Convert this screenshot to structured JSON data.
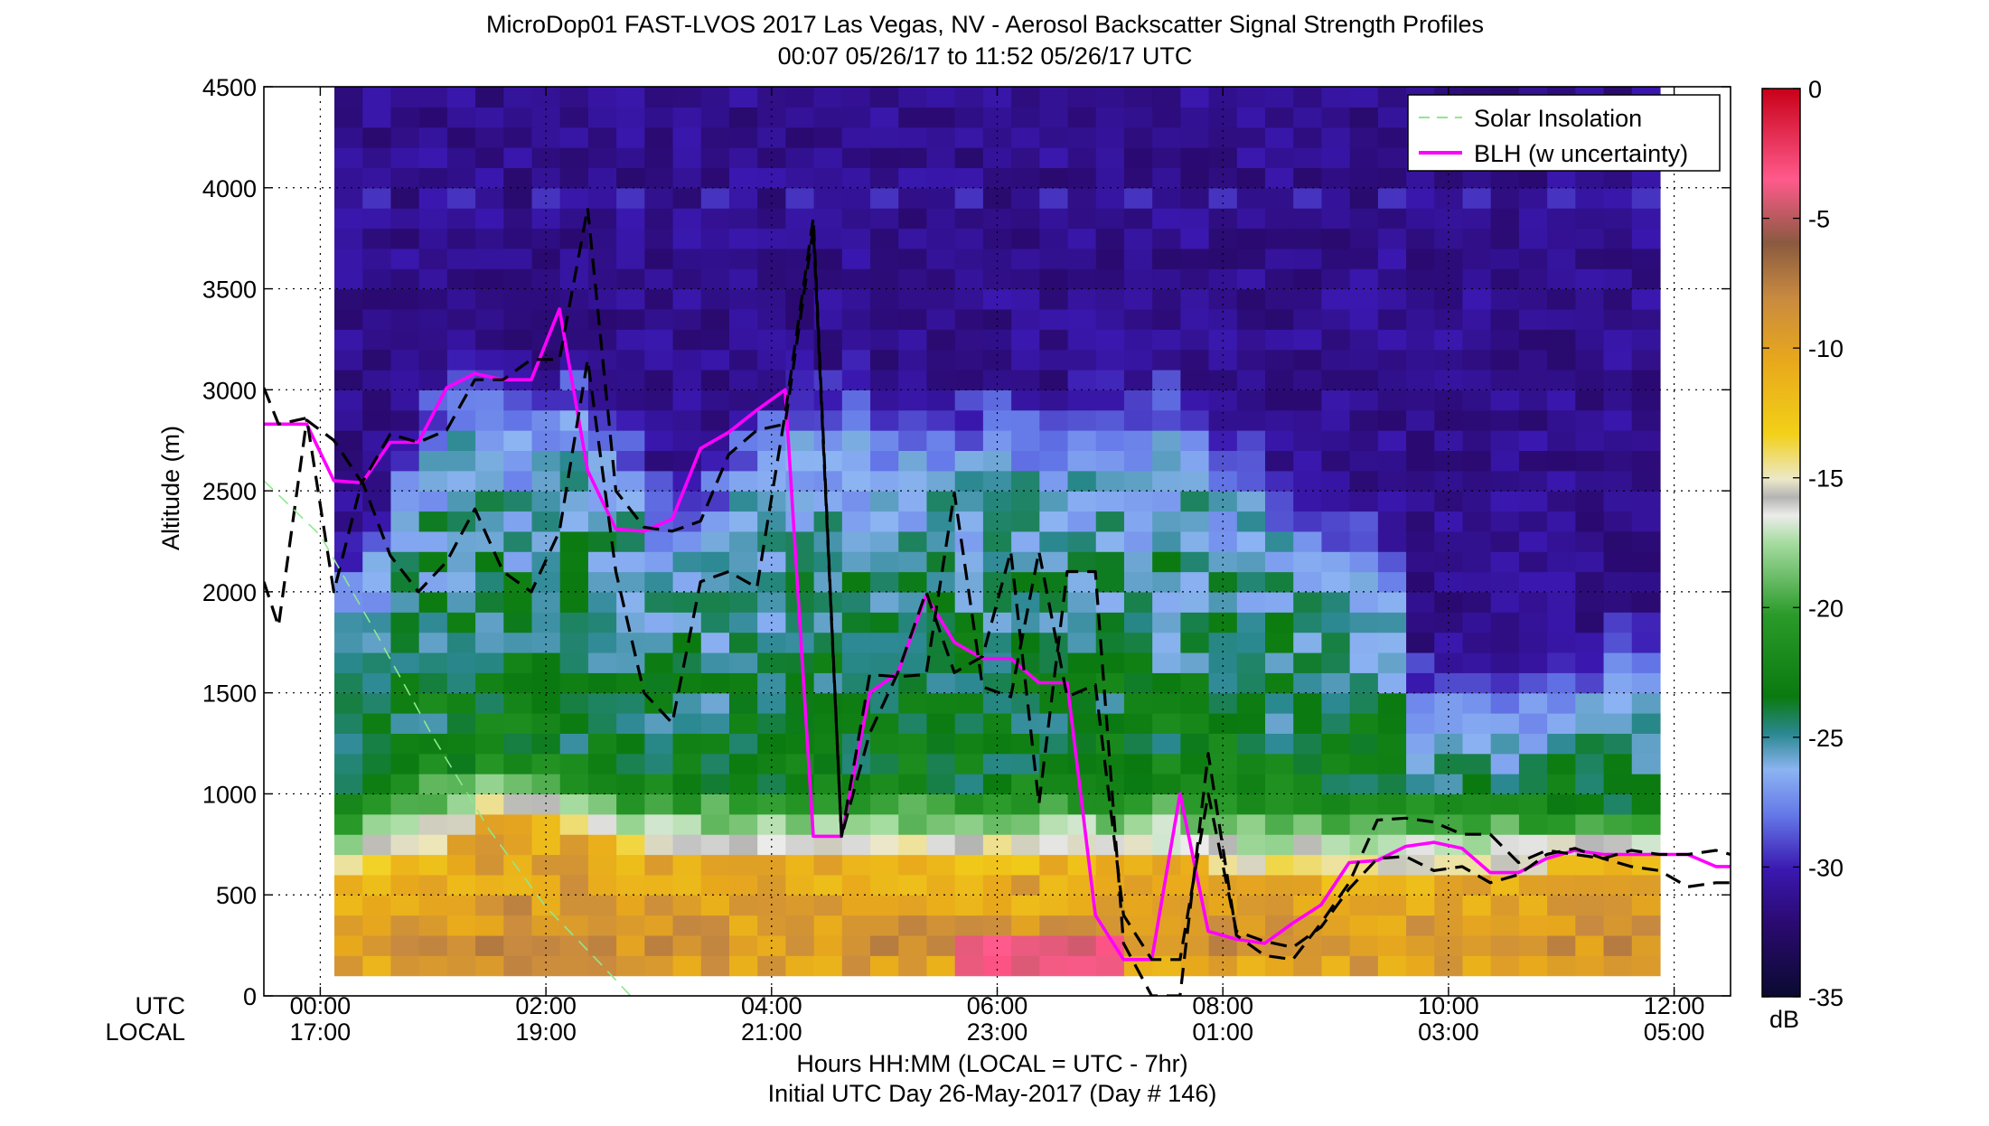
{
  "chart_data": {
    "type": "heatmap",
    "title": "MicroDop01 FAST-LVOS 2017 Las Vegas, NV - Aerosol Backscatter Signal Strength Profiles",
    "subtitle": "00:07 05/26/17 to 11:52 05/26/17  UTC",
    "ylabel": "Altitude (m)",
    "xlabel": "Hours HH:MM  (LOCAL = UTC - 7hr)",
    "xlabel2": "Initial UTC Day 26-May-2017 (Day # 146)",
    "row_labels": {
      "utc": "UTC",
      "local": "LOCAL"
    },
    "xlim": [
      -0.5,
      12.5
    ],
    "ylim": [
      0,
      4500
    ],
    "grid": true,
    "y_ticks": [
      "0",
      "500",
      "1000",
      "1500",
      "2000",
      "2500",
      "3000",
      "3500",
      "4000",
      "4500"
    ],
    "x_ticks": [
      {
        "x": 0,
        "utc": "00:00",
        "local": "17:00"
      },
      {
        "x": 2,
        "utc": "02:00",
        "local": "19:00"
      },
      {
        "x": 4,
        "utc": "04:00",
        "local": "21:00"
      },
      {
        "x": 6,
        "utc": "06:00",
        "local": "23:00"
      },
      {
        "x": 8,
        "utc": "08:00",
        "local": "01:00"
      },
      {
        "x": 10,
        "utc": "10:00",
        "local": "03:00"
      },
      {
        "x": 12,
        "utc": "12:00",
        "local": "05:00"
      }
    ],
    "colorbar": {
      "range": [
        -35,
        0
      ],
      "unit": "dB",
      "tick_labels": [
        "0",
        "-5",
        "-10",
        "-15",
        "-20",
        "-25",
        "-30",
        "-35"
      ]
    },
    "legend": {
      "position": "top-right",
      "entries": [
        {
          "label": "Solar Insolation",
          "color": "#8fe88f",
          "style": "dashed"
        },
        {
          "label": "BLH (w uncertainty)",
          "color": "#ff00ff",
          "style": "solid"
        }
      ]
    },
    "data_extent": {
      "t_start": 0.13,
      "t_end": 11.88,
      "z_start": 100
    },
    "backscatter_columns": [
      {
        "t": 0.25,
        "top": 2100,
        "hi": 600,
        "mid": 1000,
        "spike": -27,
        "rough": 1
      },
      {
        "t": 0.5,
        "top": 2300,
        "hi": 650,
        "mid": 1050,
        "spike": -27,
        "rough": 1.2
      },
      {
        "t": 0.75,
        "top": 2600,
        "hi": 700,
        "mid": 1100,
        "spike": -27,
        "rough": 1
      },
      {
        "t": 1.0,
        "top": 2850,
        "hi": 750,
        "mid": 1150,
        "spike": -27,
        "rough": 1.3
      },
      {
        "t": 1.25,
        "top": 3000,
        "hi": 800,
        "mid": 1150,
        "spike": -27,
        "rough": 1
      },
      {
        "t": 1.5,
        "top": 2950,
        "hi": 950,
        "mid": 1200,
        "spike": -27,
        "rough": 1.1
      },
      {
        "t": 1.75,
        "top": 2900,
        "hi": 950,
        "mid": 1200,
        "spike": -29,
        "rough": 1.2
      },
      {
        "t": 2.0,
        "top": 2900,
        "hi": 900,
        "mid": 1200,
        "spike": -29,
        "rough": 1
      },
      {
        "t": 2.25,
        "top": 2950,
        "hi": 850,
        "mid": 1150,
        "spike": -28,
        "rough": 1.3
      },
      {
        "t": 2.5,
        "top": 2800,
        "hi": 800,
        "mid": 1100,
        "spike": -28,
        "rough": 1.1
      },
      {
        "t": 2.75,
        "top": 2650,
        "hi": 750,
        "mid": 1050,
        "spike": -28,
        "rough": 1
      },
      {
        "t": 3.0,
        "top": 2450,
        "hi": 750,
        "mid": 1050,
        "spike": -29,
        "rough": 1.1
      },
      {
        "t": 3.25,
        "top": 2400,
        "hi": 700,
        "mid": 1050,
        "spike": -29,
        "rough": 1
      },
      {
        "t": 3.5,
        "top": 2500,
        "hi": 700,
        "mid": 1050,
        "spike": -29,
        "rough": 1.2
      },
      {
        "t": 3.75,
        "top": 2700,
        "hi": 700,
        "mid": 1050,
        "spike": -29,
        "rough": 1
      },
      {
        "t": 4.0,
        "top": 2800,
        "hi": 700,
        "mid": 1050,
        "spike": -28,
        "rough": 1.2
      },
      {
        "t": 4.25,
        "top": 2900,
        "hi": 700,
        "mid": 1050,
        "spike": -26,
        "rough": 1
      },
      {
        "t": 4.5,
        "top": 2900,
        "hi": 700,
        "mid": 1050,
        "spike": -29,
        "rough": 1
      },
      {
        "t": 4.75,
        "top": 2950,
        "hi": 700,
        "mid": 1050,
        "spike": -27,
        "rough": 1.1
      },
      {
        "t": 5.0,
        "top": 2800,
        "hi": 700,
        "mid": 1050,
        "spike": -29,
        "rough": 1
      },
      {
        "t": 5.25,
        "top": 2850,
        "hi": 700,
        "mid": 1050,
        "spike": -28,
        "rough": 1.2
      },
      {
        "t": 5.5,
        "top": 2800,
        "hi": 700,
        "mid": 1050,
        "spike": -28,
        "rough": 1
      },
      {
        "t": 5.75,
        "top": 2800,
        "hi": 700,
        "mid": 1050,
        "spike": -29,
        "rough": 1.1
      },
      {
        "t": 6.0,
        "top": 2850,
        "hi": 700,
        "mid": 1050,
        "spike": -28,
        "rough": 1
      },
      {
        "t": 6.25,
        "top": 2800,
        "hi": 700,
        "mid": 1050,
        "spike": -26,
        "rough": 1.2
      },
      {
        "t": 6.5,
        "top": 2750,
        "hi": 700,
        "mid": 1050,
        "spike": -29,
        "rough": 1
      },
      {
        "t": 6.75,
        "top": 2850,
        "hi": 700,
        "mid": 1050,
        "spike": -28,
        "rough": 1
      },
      {
        "t": 7.0,
        "top": 2900,
        "hi": 700,
        "mid": 1050,
        "spike": -29,
        "rough": 1.1
      },
      {
        "t": 7.25,
        "top": 2750,
        "hi": 700,
        "mid": 1050,
        "spike": -29,
        "rough": 1
      },
      {
        "t": 7.5,
        "top": 2900,
        "hi": 700,
        "mid": 1050,
        "spike": -29,
        "rough": 1.2
      },
      {
        "t": 7.75,
        "top": 2800,
        "hi": 700,
        "mid": 1050,
        "spike": -29,
        "rough": 1
      },
      {
        "t": 8.0,
        "top": 2650,
        "hi": 650,
        "mid": 1050,
        "spike": -29,
        "rough": 1.1
      },
      {
        "t": 8.25,
        "top": 2600,
        "hi": 650,
        "mid": 1000,
        "spike": -29,
        "rough": 1
      },
      {
        "t": 8.5,
        "top": 2450,
        "hi": 650,
        "mid": 1000,
        "spike": -28,
        "rough": 1.2
      },
      {
        "t": 8.75,
        "top": 2350,
        "hi": 650,
        "mid": 1000,
        "spike": -29,
        "rough": 1
      },
      {
        "t": 9.0,
        "top": 2300,
        "hi": 650,
        "mid": 1000,
        "spike": -29,
        "rough": 1
      },
      {
        "t": 9.25,
        "top": 2250,
        "hi": 650,
        "mid": 1000,
        "spike": -29,
        "rough": 1.1
      },
      {
        "t": 9.5,
        "top": 2100,
        "hi": 650,
        "mid": 1000,
        "spike": -29,
        "rough": 1
      },
      {
        "t": 9.75,
        "top": 1500,
        "hi": 650,
        "mid": 1000,
        "spike": -29,
        "rough": 1
      },
      {
        "t": 10.0,
        "top": 1500,
        "hi": 650,
        "mid": 950,
        "spike": -29,
        "rough": 1
      },
      {
        "t": 10.25,
        "top": 1500,
        "hi": 650,
        "mid": 950,
        "spike": -29,
        "rough": 1
      },
      {
        "t": 10.5,
        "top": 1450,
        "hi": 650,
        "mid": 950,
        "spike": -29,
        "rough": 1
      },
      {
        "t": 10.75,
        "top": 1500,
        "hi": 650,
        "mid": 950,
        "spike": -29,
        "rough": 1
      },
      {
        "t": 11.0,
        "top": 1550,
        "hi": 700,
        "mid": 950,
        "spike": -29,
        "rough": 1
      },
      {
        "t": 11.25,
        "top": 1600,
        "hi": 700,
        "mid": 950,
        "spike": -28,
        "rough": 1
      },
      {
        "t": 11.5,
        "top": 1650,
        "hi": 700,
        "mid": 950,
        "spike": -29,
        "rough": 1
      },
      {
        "t": 11.75,
        "top": 1650,
        "hi": 700,
        "mid": 950,
        "spike": -29,
        "rough": 1
      }
    ],
    "series": [
      {
        "name": "BLH (w uncertainty)",
        "kind": "blh",
        "color": "#ff00ff",
        "x": [
          -0.5,
          -0.12,
          0.12,
          0.37,
          0.62,
          0.87,
          1.12,
          1.37,
          1.62,
          1.87,
          2.12,
          2.37,
          2.62,
          2.87,
          3.12,
          3.37,
          3.62,
          3.87,
          4.12,
          4.37,
          4.62,
          4.87,
          5.12,
          5.37,
          5.62,
          5.87,
          6.12,
          6.37,
          6.62,
          6.87,
          7.12,
          7.37,
          7.62,
          7.87,
          8.12,
          8.37,
          8.62,
          8.87,
          9.12,
          9.37,
          9.62,
          9.87,
          10.12,
          10.37,
          10.62,
          10.87,
          11.12,
          11.37,
          11.62,
          11.87,
          12.12,
          12.37,
          12.5
        ],
        "y": [
          2830,
          2830,
          2550,
          2540,
          2740,
          2740,
          3010,
          3080,
          3050,
          3050,
          3400,
          2600,
          2310,
          2300,
          2360,
          2710,
          2790,
          2900,
          3000,
          790,
          790,
          1500,
          1600,
          1980,
          1750,
          1670,
          1670,
          1550,
          1550,
          400,
          180,
          180,
          1000,
          320,
          280,
          260,
          360,
          450,
          660,
          670,
          740,
          760,
          730,
          610,
          610,
          680,
          720,
          700,
          700,
          700,
          700,
          640,
          640
        ]
      },
      {
        "name": "",
        "kind": "uncertainty",
        "color": "#000000",
        "x": [
          -0.5,
          -0.37,
          -0.12,
          0.12,
          0.37,
          0.62,
          0.87,
          1.12,
          1.37,
          1.62,
          1.87,
          2.12,
          2.37,
          2.62,
          2.87,
          3.12,
          3.37,
          3.62,
          3.87,
          4.12,
          4.37,
          4.62,
          4.87,
          5.12,
          5.37,
          5.62,
          5.87,
          6.12,
          6.37,
          6.62,
          6.87,
          7.12,
          7.37,
          7.62,
          7.87,
          8.12,
          8.37,
          8.62,
          8.87,
          9.12,
          9.37,
          9.62,
          9.87,
          10.12,
          10.37,
          10.62,
          10.87,
          11.12,
          11.37,
          11.62,
          11.87,
          12.12,
          12.37,
          12.5
        ],
        "y": [
          3010,
          2830,
          2860,
          2000,
          2550,
          2180,
          2000,
          2150,
          2410,
          2100,
          2000,
          2300,
          3150,
          2100,
          1500,
          1350,
          2050,
          2100,
          2020,
          2880,
          3850,
          790,
          1590,
          1580,
          1590,
          2490,
          1530,
          1480,
          2200,
          1480,
          1540,
          400,
          180,
          180,
          1000,
          320,
          270,
          240,
          340,
          530,
          680,
          690,
          620,
          640,
          560,
          600,
          700,
          730,
          680,
          640,
          620,
          540,
          560,
          560
        ]
      },
      {
        "name": "",
        "kind": "uncertainty",
        "color": "#000000",
        "x": [
          -0.5,
          -0.37,
          -0.12,
          0.12,
          0.37,
          0.62,
          0.87,
          1.12,
          1.37,
          1.62,
          1.87,
          2.12,
          2.37,
          2.62,
          2.87,
          3.12,
          3.37,
          3.62,
          3.87,
          4.12,
          4.37,
          4.62,
          4.87,
          5.12,
          5.37,
          5.62,
          5.87,
          6.12,
          6.37,
          6.62,
          6.87,
          7.12,
          7.37,
          7.62,
          7.87,
          8.12,
          8.37,
          8.62,
          8.87,
          9.12,
          9.37,
          9.62,
          9.87,
          10.12,
          10.37,
          10.62,
          10.87,
          11.12,
          11.37,
          11.62,
          11.87,
          12.12,
          12.37,
          12.5
        ],
        "y": [
          2050,
          1830,
          2850,
          2750,
          2540,
          2780,
          2740,
          2800,
          3050,
          3050,
          3150,
          3150,
          3900,
          2500,
          2320,
          2300,
          2350,
          2680,
          2800,
          2830,
          3800,
          790,
          1300,
          1600,
          2000,
          1600,
          1680,
          2200,
          950,
          2100,
          2100,
          260,
          0,
          0,
          1200,
          300,
          200,
          180,
          360,
          560,
          870,
          880,
          860,
          800,
          800,
          660,
          720,
          700,
          680,
          720,
          700,
          700,
          720,
          700
        ]
      },
      {
        "name": "Solar Insolation",
        "kind": "solar",
        "color": "#8fe88f",
        "x": [
          -0.5,
          0,
          0.5,
          1.0,
          1.5,
          2.0,
          2.5,
          2.75
        ],
        "y": [
          2550,
          2280,
          1790,
          1280,
          820,
          440,
          150,
          0
        ]
      }
    ]
  }
}
